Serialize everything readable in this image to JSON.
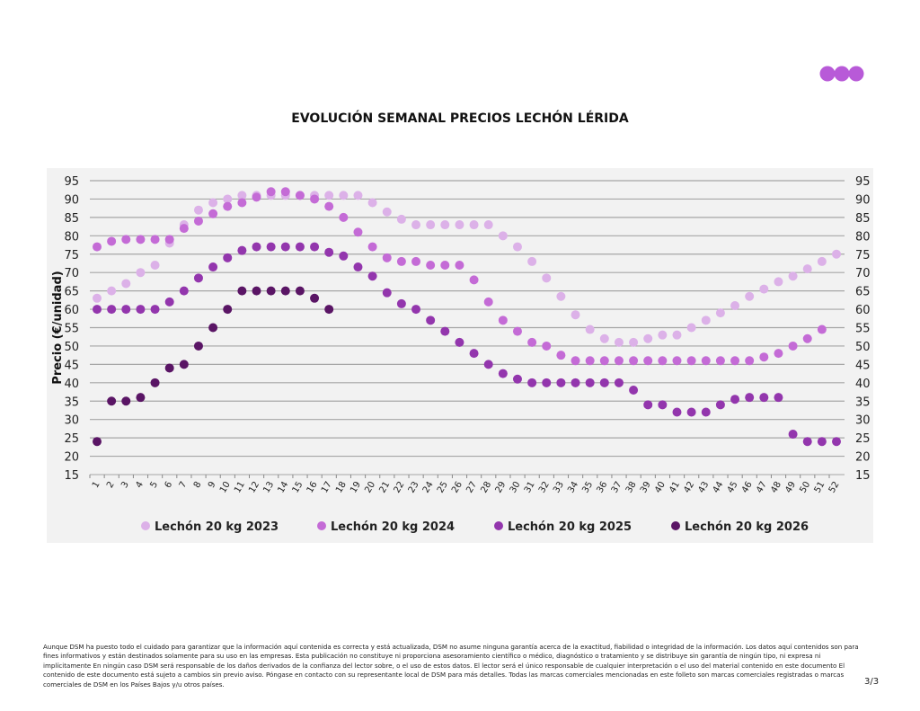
{
  "logo": {
    "name": "DSM three-circle logo",
    "color": "#b85ad8"
  },
  "title": "EVOLUCIÓN SEMANAL PRECIOS LECHÓN LÉRIDA",
  "chart_data": {
    "type": "scatter",
    "title": "EVOLUCIÓN SEMANAL PRECIOS LECHÓN LÉRIDA",
    "ylabel": "Precio (€/unidad)",
    "xlabel": "",
    "ylim": [
      15,
      95
    ],
    "yticks": [
      "15",
      "20",
      "25",
      "30",
      "35",
      "40",
      "45",
      "50",
      "55",
      "60",
      "65",
      "70",
      "75",
      "80",
      "85",
      "90",
      "95"
    ],
    "y_axis_both_sides": true,
    "grid": true,
    "legend_placement": "bottom",
    "x": [
      1,
      2,
      3,
      4,
      5,
      6,
      7,
      8,
      9,
      10,
      11,
      12,
      13,
      14,
      15,
      16,
      17,
      18,
      19,
      20,
      21,
      22,
      23,
      24,
      25,
      26,
      27,
      28,
      29,
      30,
      31,
      32,
      33,
      34,
      35,
      36,
      37,
      38,
      39,
      40,
      41,
      42,
      43,
      44,
      45,
      46,
      47,
      48,
      49,
      50,
      51,
      52
    ],
    "series": [
      {
        "name": "Lechón 20 kg 2023",
        "color": "#dcb1e8",
        "values": [
          63,
          65,
          67,
          70,
          72,
          78,
          83,
          87,
          89,
          90,
          91,
          91,
          91,
          91,
          91,
          91,
          91,
          91,
          91,
          89,
          86.5,
          84.5,
          83,
          83,
          83,
          83,
          83,
          83,
          80,
          77,
          73,
          68.5,
          63.5,
          58.5,
          54.5,
          52,
          51,
          51,
          52,
          53,
          53,
          55,
          57,
          59,
          61,
          63.5,
          65.5,
          67.5,
          69,
          71,
          73,
          75
        ]
      },
      {
        "name": "Lechón 20 kg 2024",
        "color": "#c46bd6",
        "values": [
          77,
          78.5,
          79,
          79,
          79,
          79,
          82,
          84,
          86,
          88,
          89,
          90.5,
          92,
          92,
          91,
          90,
          88,
          85,
          81,
          77,
          74,
          73,
          73,
          72,
          72,
          72,
          68,
          62,
          57,
          54,
          51,
          50,
          47.5,
          46,
          46,
          46,
          46,
          46,
          46,
          46,
          46,
          46,
          46,
          46,
          46,
          46,
          47,
          48,
          50,
          52,
          54.5,
          null
        ]
      },
      {
        "name": "Lechón 20 kg 2025",
        "color": "#9336ad",
        "values": [
          60,
          60,
          60,
          60,
          60,
          62,
          65,
          68.5,
          71.5,
          74,
          76,
          77,
          77,
          77,
          77,
          77,
          75.5,
          74.5,
          71.5,
          69,
          64.5,
          61.5,
          60,
          57,
          54,
          51,
          48,
          45,
          42.5,
          41,
          40,
          40,
          40,
          40,
          40,
          40,
          40,
          38,
          34,
          34,
          32,
          32,
          32,
          34,
          35.5,
          36,
          36,
          36,
          26,
          24,
          24,
          24
        ]
      },
      {
        "name": "Lechón 20 kg 2026",
        "color": "#5a1565",
        "values": [
          24,
          35,
          35,
          36,
          40,
          44,
          45,
          50,
          55,
          60,
          65,
          65,
          65,
          65,
          65,
          63,
          60,
          null,
          null,
          null,
          null,
          null,
          null,
          null,
          null,
          null,
          null,
          null,
          null,
          null,
          null,
          null,
          null,
          null,
          null,
          null,
          null,
          null,
          null,
          null,
          null,
          null,
          null,
          null,
          null,
          null,
          null,
          null,
          null,
          null,
          null,
          null
        ]
      }
    ]
  },
  "disclaimer": "Aunque DSM ha puesto todo el cuidado para garantizar que la información aquí contenida es correcta y está actualizada, DSM no asume ninguna garantía acerca de la exactitud, fiabilidad o integridad de la información. Los datos aquí contenidos son para fines informativos y están destinados solamente para su uso en las empresas. Esta publicación no constituye ni proporciona asesoramiento científico o médico, diagnóstico o tratamiento y se distribuye sin garantía de ningún tipo, ni expresa ni implícitamente En ningún caso DSM será responsable de los daños derivados de la confianza del lector sobre, o el uso de estos datos. El lector será el único responsable de cualquier interpretación o el uso del material contenido en este documento El contenido de este documento está sujeto a cambios sin previo aviso. Póngase en contacto con su representante local de DSM para más detalles. Todas las marcas comerciales mencionadas en este folleto son marcas comerciales registradas o marcas comerciales de DSM en los Países Bajos y/u otros países.",
  "page_number": "3/3"
}
